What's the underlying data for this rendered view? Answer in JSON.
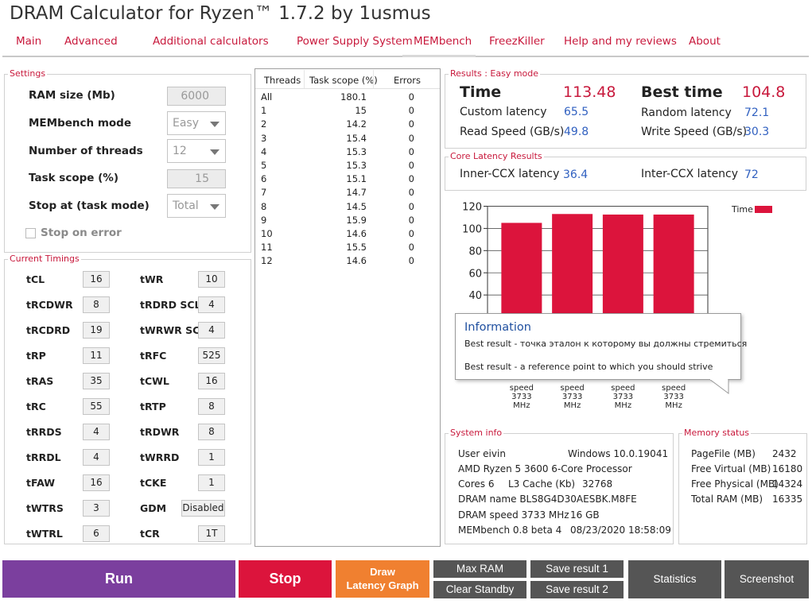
{
  "app": {
    "title": "DRAM Calculator for Ryzen™ 1.7.2 by 1usmus"
  },
  "nav": {
    "tabs": [
      "Main",
      "Advanced",
      "Additional calculators",
      "Power Supply System",
      "MEMbench",
      "FreezKiller",
      "Help and my reviews",
      "About"
    ],
    "active": "MEMbench"
  },
  "settings": {
    "title": "Settings",
    "ram_size_label": "RAM size (Mb)",
    "ram_size_value": "6000",
    "mode_label": "MEMbench mode",
    "mode_value": "Easy",
    "threads_label": "Number of threads",
    "threads_value": "12",
    "task_scope_label": "Task scope (%)",
    "task_scope_value": "15",
    "stop_at_label": "Stop at (task mode)",
    "stop_at_value": "Total",
    "stop_on_error_label": "Stop on error",
    "stop_on_error_checked": false
  },
  "timings": {
    "title": "Current Timings",
    "left": [
      {
        "name": "tCL",
        "value": "16"
      },
      {
        "name": "tRCDWR",
        "value": "8"
      },
      {
        "name": "tRCDRD",
        "value": "19"
      },
      {
        "name": "tRP",
        "value": "11"
      },
      {
        "name": "tRAS",
        "value": "35"
      },
      {
        "name": "tRC",
        "value": "55"
      },
      {
        "name": "tRRDS",
        "value": "4"
      },
      {
        "name": "tRRDL",
        "value": "4"
      },
      {
        "name": "tFAW",
        "value": "16"
      },
      {
        "name": "tWTRS",
        "value": "3"
      },
      {
        "name": "tWTRL",
        "value": "6"
      }
    ],
    "right": [
      {
        "name": "tWR",
        "value": "10"
      },
      {
        "name": "tRDRD SCL",
        "value": "4"
      },
      {
        "name": "tWRWR SCL",
        "value": "4"
      },
      {
        "name": "tRFC",
        "value": "525"
      },
      {
        "name": "tCWL",
        "value": "16"
      },
      {
        "name": "tRTP",
        "value": "8"
      },
      {
        "name": "tRDWR",
        "value": "8"
      },
      {
        "name": "tWRRD",
        "value": "1"
      },
      {
        "name": "tCKE",
        "value": "1"
      },
      {
        "name": "GDM",
        "value": "Disabled"
      },
      {
        "name": "tCR",
        "value": "1T"
      }
    ]
  },
  "threads_table": {
    "headers": [
      "Threads",
      "Task scope (%)",
      "Errors"
    ],
    "rows": [
      [
        "All",
        "180.1",
        "0"
      ],
      [
        "1",
        "15",
        "0"
      ],
      [
        "2",
        "14.2",
        "0"
      ],
      [
        "3",
        "15.4",
        "0"
      ],
      [
        "4",
        "15.3",
        "0"
      ],
      [
        "5",
        "15.3",
        "0"
      ],
      [
        "6",
        "15.1",
        "0"
      ],
      [
        "7",
        "14.7",
        "0"
      ],
      [
        "8",
        "14.5",
        "0"
      ],
      [
        "9",
        "15.9",
        "0"
      ],
      [
        "10",
        "14.6",
        "0"
      ],
      [
        "11",
        "15.5",
        "0"
      ],
      [
        "12",
        "14.6",
        "0"
      ]
    ]
  },
  "results": {
    "title": "Results : Easy mode",
    "time_label": "Time",
    "time_value": "113.48",
    "best_label": "Best time",
    "best_value": "104.8",
    "custom_latency_label": "Custom latency",
    "custom_latency_value": "65.5",
    "random_latency_label": "Random latency",
    "random_latency_value": "72.1",
    "read_speed_label": "Read Speed (GB/s)",
    "read_speed_value": "49.8",
    "write_speed_label": "Write Speed (GB/s)",
    "write_speed_value": "30.3"
  },
  "core_latency": {
    "title": "Core Latency Results",
    "inner_label": "Inner-CCX latency",
    "inner_value": "36.4",
    "inter_label": "Inter-CCX latency",
    "inter_value": "72"
  },
  "chart_data": {
    "type": "bar",
    "series": [
      {
        "name": "Time",
        "values": [
          105,
          113,
          112.5,
          112.5
        ]
      }
    ],
    "categories": [
      "speed 3733 MHz",
      "speed 3733 MHz",
      "speed 3733 MHz",
      "speed 3733 MHz"
    ],
    "category_lines": [
      "speed",
      "3733",
      "MHz"
    ],
    "yticks": [
      "40",
      "60",
      "80",
      "100",
      "120"
    ],
    "ylim": [
      0,
      120
    ],
    "grid": true,
    "legend": "top-right",
    "bar_color": "#dc143c"
  },
  "tooltip": {
    "title": "Information",
    "line1": "Best result - точка эталон к которому вы должны стремиться",
    "line2": "Best result - a reference point to which you should strive"
  },
  "system_info": {
    "title": "System info",
    "user": "User eivin",
    "os": "Windows 10.0.19041",
    "cpu": "AMD Ryzen 5 3600 6-Core Processor",
    "cores": "Cores 6",
    "l3_label": "L3 Cache (Kb)",
    "l3_value": "32768",
    "dram_name": "DRAM name BLS8G4D30AESBK.M8FE",
    "dram_speed": "DRAM speed 3733 MHz",
    "dram_size": "16 GB",
    "membench_version": "MEMbench 0.8 beta 4",
    "datetime": "08/23/2020 18:58:09"
  },
  "memory_status": {
    "title": "Memory status",
    "rows": [
      {
        "label": "PageFile (MB)",
        "value": "2432"
      },
      {
        "label": "Free Virtual (MB)",
        "value": "16180"
      },
      {
        "label": "Free Physical (MB)",
        "value": "14324"
      },
      {
        "label": "Total RAM (MB)",
        "value": "16335"
      }
    ]
  },
  "buttons": {
    "run": "Run",
    "stop": "Stop",
    "draw_line1": "Draw",
    "draw_line2": "Latency Graph",
    "max_ram": "Max RAM",
    "clear_standby": "Clear Standby",
    "save1": "Save result 1",
    "save2": "Save result 2",
    "statistics": "Statistics",
    "screenshot": "Screenshot"
  },
  "colors": {
    "accent": "#c8193c",
    "run_bg": "#7b3f9e",
    "stop_bg": "#dc143c",
    "draw_bg": "#f08030",
    "gray_btn": "#555555",
    "value_blue": "#3060c0"
  }
}
